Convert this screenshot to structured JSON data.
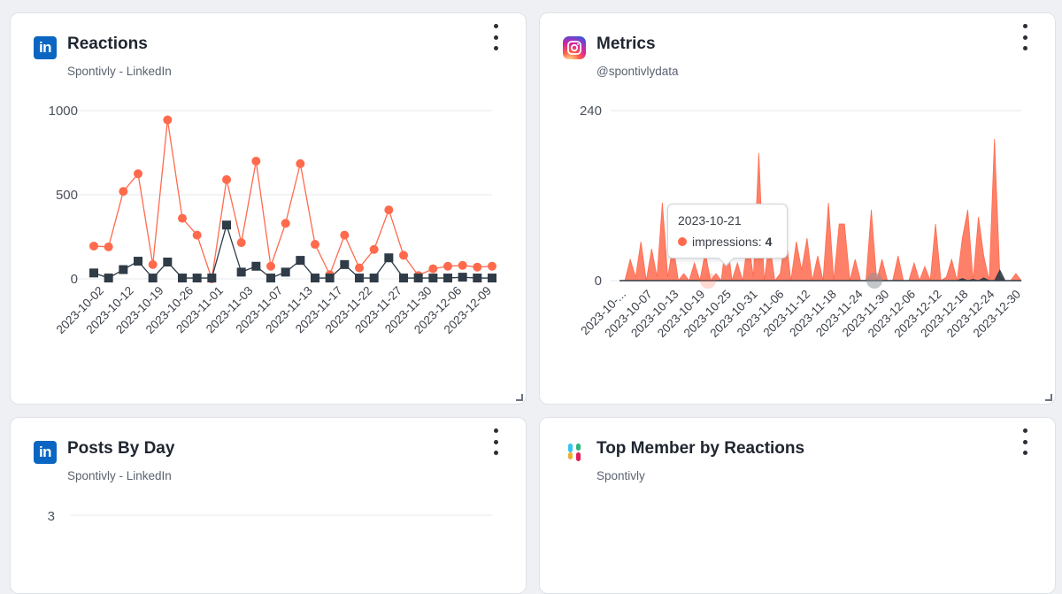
{
  "cards": {
    "reactions": {
      "title": "Reactions",
      "subtitle": "Spontivly - LinkedIn",
      "icon": "linkedin-icon"
    },
    "metrics": {
      "title": "Metrics",
      "subtitle": "@spontivlydata",
      "icon": "instagram-icon"
    },
    "posts": {
      "title": "Posts By Day",
      "subtitle": "Spontivly - LinkedIn",
      "icon": "linkedin-icon",
      "y_tick": "3"
    },
    "top": {
      "title": "Top Member by Reactions",
      "subtitle": "Spontivly",
      "icon": "slack-icon"
    }
  },
  "tooltip": {
    "date": "2023-10-21",
    "series": "impressions:",
    "value": "4"
  },
  "colors": {
    "orange": "#ff6a4d",
    "dark": "#2f3b46",
    "linkedin": "#0a66c2"
  },
  "chart_data": [
    {
      "type": "line",
      "title": "Reactions",
      "ylim": [
        0,
        1000
      ],
      "y_ticks": [
        "1000",
        "500",
        "0"
      ],
      "x_tick_labels": [
        "2023-10-02",
        "2023-10-12",
        "2023-10-19",
        "2023-10-26",
        "2023-11-01",
        "2023-11-03",
        "2023-11-07",
        "2023-11-13",
        "2023-11-17",
        "2023-11-22",
        "2023-11-27",
        "2023-11-30",
        "2023-12-06",
        "2023-12-09"
      ],
      "series": [
        {
          "name": "orange",
          "color": "#ff6a4d",
          "values": [
            195,
            190,
            520,
            625,
            85,
            945,
            360,
            260,
            0,
            590,
            215,
            700,
            75,
            330,
            685,
            205,
            25,
            260,
            65,
            175,
            410,
            140,
            20,
            60,
            75,
            80,
            70,
            75
          ]
        },
        {
          "name": "dark",
          "color": "#2f3b46",
          "values": [
            35,
            5,
            55,
            105,
            5,
            100,
            5,
            5,
            5,
            320,
            40,
            75,
            5,
            40,
            110,
            5,
            5,
            85,
            5,
            5,
            125,
            5,
            5,
            5,
            5,
            10,
            5,
            5
          ]
        }
      ]
    },
    {
      "type": "area",
      "title": "Metrics",
      "ylim": [
        0,
        240
      ],
      "y_ticks": [
        "240",
        "0"
      ],
      "x_tick_labels": [
        "2023-10-...",
        "2023-10-07",
        "2023-10-13",
        "2023-10-19",
        "2023-10-25",
        "2023-10-31",
        "2023-11-06",
        "2023-11-12",
        "2023-11-18",
        "2023-11-24",
        "2023-11-30",
        "2023-12-06",
        "2023-12-12",
        "2023-12-18",
        "2023-12-24",
        "2023-12-30"
      ],
      "series": [
        {
          "name": "impressions",
          "color": "#ff6a4d",
          "values": [
            0,
            0,
            30,
            5,
            55,
            0,
            45,
            5,
            110,
            5,
            50,
            0,
            10,
            0,
            25,
            0,
            40,
            0,
            10,
            0,
            65,
            0,
            25,
            0,
            60,
            5,
            180,
            0,
            55,
            0,
            10,
            65,
            0,
            55,
            15,
            60,
            0,
            35,
            0,
            110,
            0,
            80,
            80,
            0,
            30,
            0,
            0,
            100,
            0,
            30,
            0,
            0,
            35,
            0,
            0,
            25,
            0,
            20,
            0,
            80,
            0,
            5,
            30,
            0,
            60,
            100,
            0,
            90,
            35,
            0,
            200,
            5,
            0,
            0,
            10,
            0
          ]
        },
        {
          "name": "engagement",
          "color": "#2f3b46",
          "values": [
            0,
            0,
            0,
            0,
            0,
            0,
            0,
            0,
            0,
            0,
            0,
            0,
            0,
            0,
            0,
            0,
            0,
            0,
            0,
            0,
            0,
            0,
            0,
            0,
            0,
            0,
            0,
            0,
            0,
            0,
            0,
            0,
            0,
            0,
            0,
            0,
            0,
            0,
            0,
            0,
            0,
            0,
            0,
            0,
            0,
            0,
            0,
            0,
            0,
            0,
            0,
            0,
            0,
            0,
            0,
            0,
            0,
            0,
            0,
            0,
            0,
            0,
            0,
            0,
            3,
            0,
            2,
            0,
            4,
            0,
            0,
            15,
            0,
            0,
            0,
            0
          ]
        }
      ]
    },
    {
      "type": "bar",
      "title": "Posts By Day",
      "y_ticks": [
        "3"
      ]
    }
  ]
}
